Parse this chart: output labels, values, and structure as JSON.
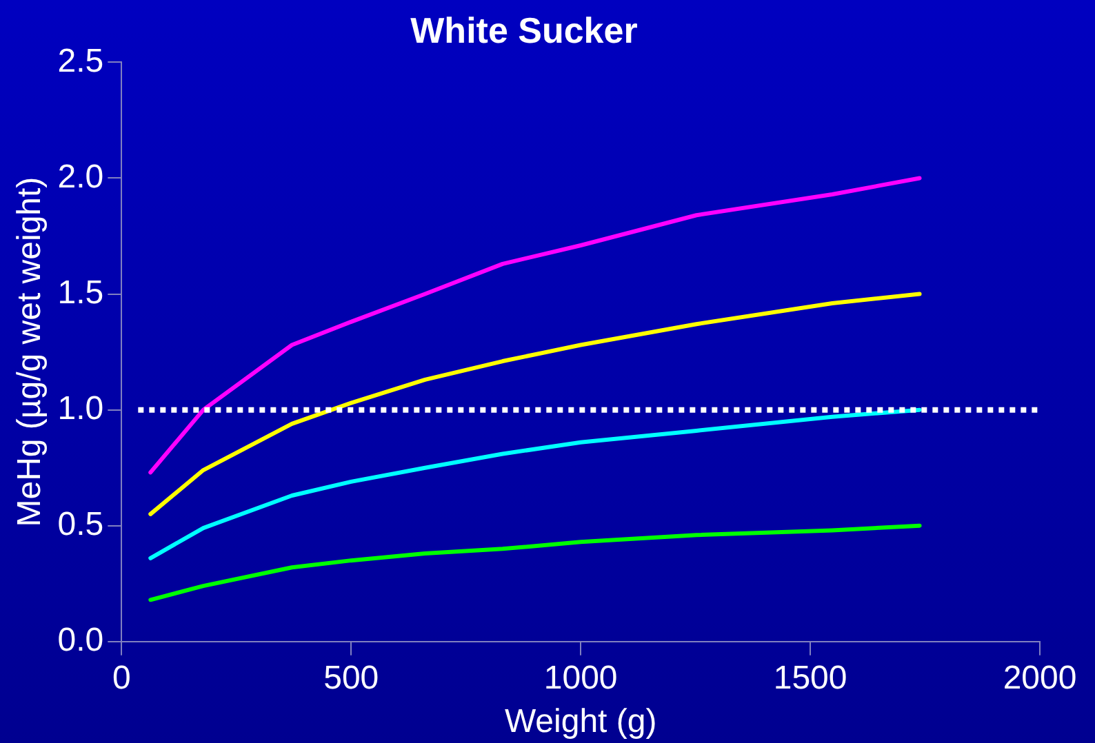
{
  "chart_data": {
    "type": "line",
    "title": "White Sucker",
    "xlabel": "Weight (g)",
    "ylabel": "MeHg (µg/g wet weight)",
    "x": [
      63,
      178,
      371,
      500,
      661,
      830,
      1000,
      1252,
      1548,
      1738
    ],
    "series": [
      {
        "color": "#ff00ff",
        "values": [
          0.73,
          1.0,
          1.28,
          1.38,
          1.5,
          1.63,
          1.71,
          1.84,
          1.93,
          2.0
        ]
      },
      {
        "color": "#ffff00",
        "values": [
          0.55,
          0.74,
          0.94,
          1.03,
          1.13,
          1.21,
          1.28,
          1.37,
          1.46,
          1.5
        ]
      },
      {
        "color": "#00ffff",
        "values": [
          0.36,
          0.49,
          0.63,
          0.69,
          0.75,
          0.81,
          0.86,
          0.91,
          0.97,
          1.0
        ]
      },
      {
        "color": "#00ff00",
        "values": [
          0.18,
          0.24,
          0.32,
          0.35,
          0.38,
          0.4,
          0.43,
          0.46,
          0.48,
          0.5
        ]
      }
    ],
    "xlim": [
      0,
      2000
    ],
    "xticks": [
      0,
      500,
      1000,
      1500,
      2000
    ],
    "ylim": [
      0,
      2.5
    ],
    "yticks": [
      {
        "value": 0,
        "label": "0.0"
      },
      {
        "value": 0.5,
        "label": "0.5"
      },
      {
        "value": 1,
        "label": "1.0"
      },
      {
        "value": 1.5,
        "label": "1.5"
      },
      {
        "value": 2,
        "label": "2.0"
      },
      {
        "value": 2.5,
        "label": "2.5"
      }
    ],
    "ref_lines": [
      {
        "axis": "y",
        "value": 1,
        "color": "#ffffff",
        "line_style": "dotted"
      }
    ],
    "grid": false,
    "legend": false
  }
}
